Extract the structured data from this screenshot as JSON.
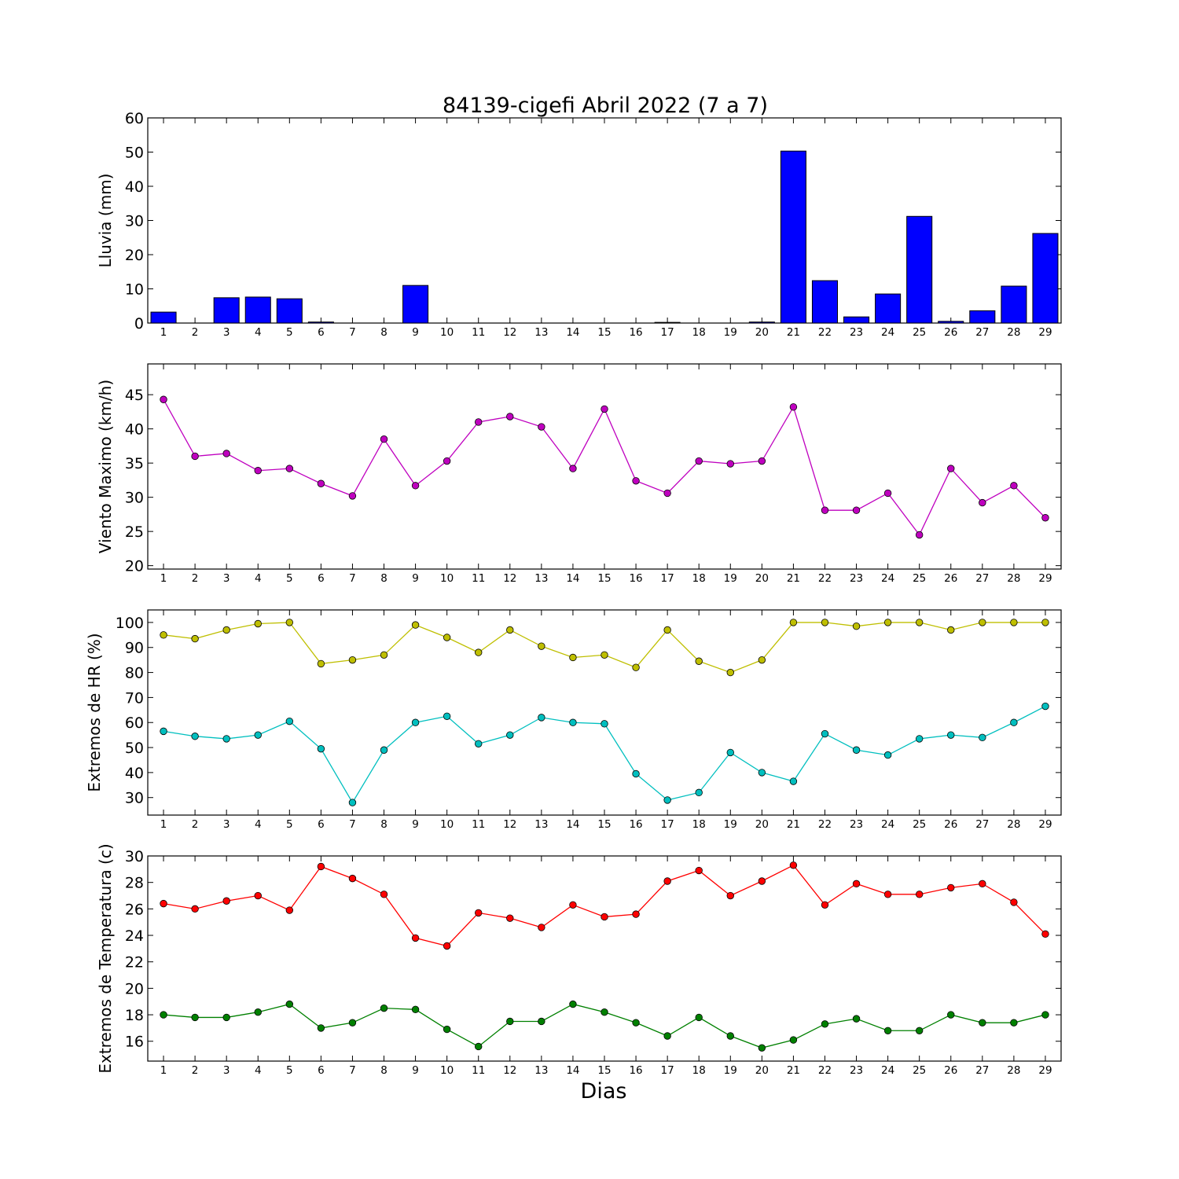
{
  "figure": {
    "title": "84139-cigefi Abril 2022  (7 a 7)",
    "xlabel": "Dias"
  },
  "chart_data": [
    {
      "type": "bar",
      "ylabel": "Lluvia (mm)",
      "ylim": [
        0,
        60
      ],
      "yticks": [
        0,
        10,
        20,
        30,
        40,
        50,
        60
      ],
      "categories": [
        "1",
        "2",
        "3",
        "4",
        "5",
        "6",
        "7",
        "8",
        "9",
        "10",
        "11",
        "12",
        "13",
        "14",
        "15",
        "16",
        "17",
        "18",
        "19",
        "20",
        "21",
        "22",
        "23",
        "24",
        "25",
        "26",
        "27",
        "28",
        "29"
      ],
      "series": [
        {
          "color": "#0000ff",
          "values": [
            3.2,
            0,
            7.4,
            7.6,
            7.1,
            0.3,
            0,
            0,
            11.0,
            0,
            0,
            0,
            0,
            0,
            0,
            0,
            0.2,
            0,
            0,
            0.3,
            50.3,
            12.4,
            1.8,
            8.5,
            31.2,
            0.5,
            3.6,
            10.8,
            26.2
          ]
        }
      ],
      "grid": false
    },
    {
      "type": "line",
      "ylabel": "Viento Maximo (km/h)",
      "ylim": [
        19.5,
        49.5
      ],
      "yticks": [
        20,
        25,
        30,
        35,
        40,
        45
      ],
      "x": [
        "1",
        "2",
        "3",
        "4",
        "5",
        "6",
        "7",
        "8",
        "9",
        "10",
        "11",
        "12",
        "13",
        "14",
        "15",
        "16",
        "17",
        "18",
        "19",
        "20",
        "21",
        "22",
        "23",
        "24",
        "25",
        "26",
        "27",
        "28",
        "29"
      ],
      "series": [
        {
          "color": "#bf00bf",
          "values": [
            44.3,
            36.0,
            36.4,
            33.9,
            34.2,
            32.0,
            30.2,
            38.5,
            31.7,
            35.3,
            41.0,
            41.8,
            40.3,
            34.2,
            42.9,
            32.4,
            30.6,
            35.3,
            34.9,
            35.3,
            43.2,
            28.1,
            28.1,
            30.6,
            24.5,
            34.2,
            29.2,
            31.7,
            27.0
          ]
        }
      ],
      "grid": false
    },
    {
      "type": "line",
      "ylabel": "Extremos de HR (%)",
      "ylim": [
        23,
        105
      ],
      "yticks": [
        30,
        40,
        50,
        60,
        70,
        80,
        90,
        100
      ],
      "x": [
        "1",
        "2",
        "3",
        "4",
        "5",
        "6",
        "7",
        "8",
        "9",
        "10",
        "11",
        "12",
        "13",
        "14",
        "15",
        "16",
        "17",
        "18",
        "19",
        "20",
        "21",
        "22",
        "23",
        "24",
        "25",
        "26",
        "27",
        "28",
        "29"
      ],
      "series": [
        {
          "color": "#bfbf00",
          "values": [
            95,
            93.5,
            97,
            99.5,
            100,
            83.5,
            85,
            87,
            99,
            94,
            88,
            97,
            90.5,
            86,
            87,
            82,
            97,
            84.5,
            80,
            85,
            100,
            100,
            98.5,
            100,
            100,
            97,
            100,
            100,
            100
          ]
        },
        {
          "color": "#00bfbf",
          "values": [
            56.5,
            54.5,
            53.5,
            55,
            60.5,
            49.5,
            28,
            49,
            60,
            62.5,
            51.5,
            55,
            62,
            60,
            59.5,
            39.5,
            29,
            32,
            48,
            40,
            36.5,
            55.5,
            49,
            47,
            53.5,
            55,
            54,
            60,
            66.5
          ]
        }
      ],
      "grid": false
    },
    {
      "type": "line",
      "ylabel": "Extremos de Temperatura (c)",
      "ylim": [
        14.5,
        30
      ],
      "yticks": [
        16,
        18,
        20,
        22,
        24,
        26,
        28,
        30
      ],
      "x": [
        "1",
        "2",
        "3",
        "4",
        "5",
        "6",
        "7",
        "8",
        "9",
        "10",
        "11",
        "12",
        "13",
        "14",
        "15",
        "16",
        "17",
        "18",
        "19",
        "20",
        "21",
        "22",
        "23",
        "24",
        "25",
        "26",
        "27",
        "28",
        "29"
      ],
      "series": [
        {
          "color": "#ff0000",
          "values": [
            26.4,
            26.0,
            26.6,
            27.0,
            25.9,
            29.2,
            28.3,
            27.1,
            23.8,
            23.2,
            25.7,
            25.3,
            24.6,
            26.3,
            25.4,
            25.6,
            28.1,
            28.9,
            27.0,
            28.1,
            29.3,
            26.3,
            27.9,
            27.1,
            27.1,
            27.6,
            27.9,
            26.5,
            24.1
          ]
        },
        {
          "color": "#008000",
          "values": [
            18.0,
            17.8,
            17.8,
            18.2,
            18.8,
            17.0,
            17.4,
            18.5,
            18.4,
            16.9,
            15.6,
            17.5,
            17.5,
            18.8,
            18.2,
            17.4,
            16.4,
            17.8,
            16.4,
            15.5,
            16.1,
            17.3,
            17.7,
            16.8,
            16.8,
            18.0,
            17.4,
            17.4,
            18.0
          ]
        }
      ],
      "grid": false
    }
  ]
}
